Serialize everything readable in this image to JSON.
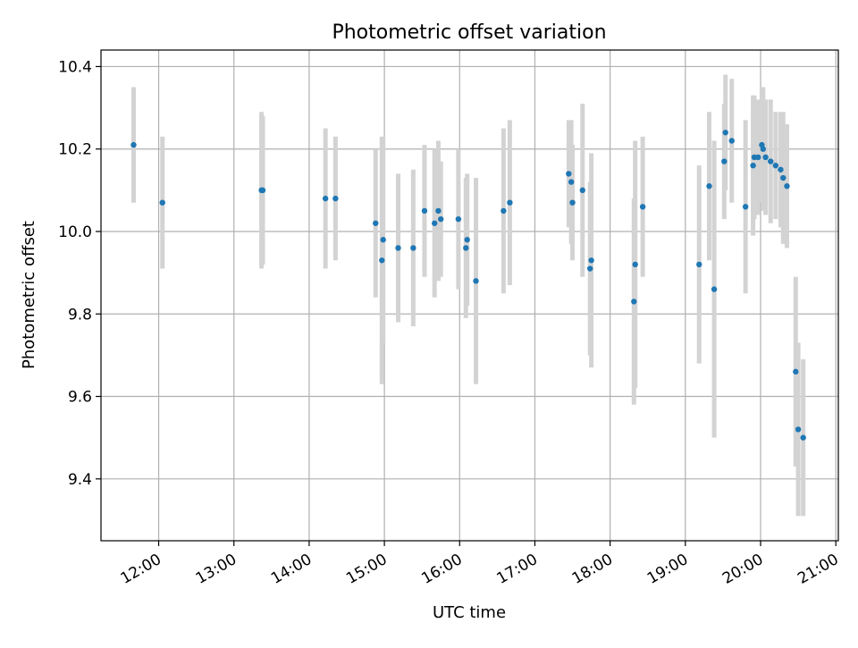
{
  "chart_data": {
    "type": "scatter",
    "title": "Photometric offset variation",
    "xlabel": "UTC time",
    "ylabel": "Photometric offset",
    "xlim": [
      "11:14",
      "21:02"
    ],
    "ylim": [
      9.25,
      10.44
    ],
    "x_tick_labels": [
      "12:00",
      "13:00",
      "14:00",
      "15:00",
      "16:00",
      "17:00",
      "18:00",
      "19:00",
      "20:00",
      "21:00"
    ],
    "y_tick_labels": [
      "9.4",
      "9.6",
      "9.8",
      "10.0",
      "10.2",
      "10.4"
    ],
    "grid": true,
    "legend": "none",
    "colors": {
      "points": "#1f77b4",
      "error_bars": "#d3d3d3",
      "grid": "#b0b0b0"
    },
    "series": [
      {
        "x": [
          "11:40",
          "12:03",
          "13:22",
          "13:23",
          "14:13",
          "14:21",
          "14:53",
          "14:58",
          "14:59",
          "15:11",
          "15:23",
          "15:32",
          "15:40",
          "15:43",
          "15:45",
          "15:59",
          "16:05",
          "16:06",
          "16:13",
          "16:35",
          "16:40",
          "17:27",
          "17:29",
          "17:30",
          "17:38",
          "17:44",
          "17:45",
          "18:19",
          "18:20",
          "18:26",
          "19:11",
          "19:19",
          "19:23",
          "19:31",
          "19:32",
          "19:37",
          "19:48",
          "19:54",
          "19:55",
          "19:58",
          "20:01",
          "20:02",
          "20:04",
          "20:08",
          "20:12",
          "20:16",
          "20:18",
          "20:21",
          "20:28",
          "20:30",
          "20:34"
        ],
        "y": [
          10.21,
          10.07,
          10.1,
          10.1,
          10.08,
          10.08,
          10.02,
          9.93,
          9.98,
          9.96,
          9.96,
          10.05,
          10.02,
          10.05,
          10.03,
          10.03,
          9.96,
          9.98,
          9.88,
          10.05,
          10.07,
          10.14,
          10.12,
          10.07,
          10.1,
          9.91,
          9.93,
          9.83,
          9.92,
          10.06,
          9.92,
          10.11,
          9.86,
          10.17,
          10.24,
          10.22,
          10.06,
          10.16,
          10.18,
          10.18,
          10.21,
          10.2,
          10.18,
          10.17,
          10.16,
          10.15,
          10.13,
          10.11,
          9.66,
          9.52,
          9.5
        ],
        "err": [
          0.14,
          0.16,
          0.19,
          0.18,
          0.17,
          0.15,
          0.18,
          0.3,
          0.25,
          0.18,
          0.19,
          0.16,
          0.18,
          0.17,
          0.14,
          0.17,
          0.17,
          0.16,
          0.25,
          0.2,
          0.2,
          0.13,
          0.15,
          0.14,
          0.21,
          0.21,
          0.26,
          0.25,
          0.3,
          0.17,
          0.24,
          0.18,
          0.36,
          0.14,
          0.14,
          0.15,
          0.21,
          0.17,
          0.15,
          0.14,
          0.14,
          0.15,
          0.14,
          0.15,
          0.13,
          0.14,
          0.16,
          0.15,
          0.23,
          0.21,
          0.19
        ]
      }
    ]
  }
}
